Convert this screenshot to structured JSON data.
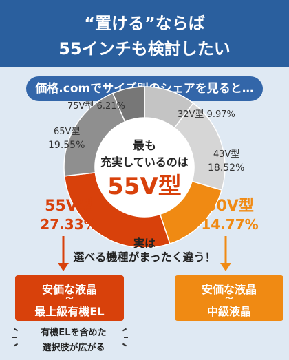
{
  "header": {
    "line1": "“置ける”ならば",
    "line2": "55インチも検討したい"
  },
  "bubble": {
    "text": "価格.comでサイズ別のシェアを見ると…"
  },
  "chart_data": {
    "type": "pie",
    "subtype": "donut",
    "categories": [
      "32V型",
      "43V型",
      "50V型",
      "55V型",
      "65V型",
      "75V型"
    ],
    "values": [
      9.97,
      18.52,
      14.77,
      27.33,
      19.55,
      6.21
    ],
    "value_labels": [
      "9.97%",
      "18.52%",
      "14.77%",
      "27.33%",
      "19.55%",
      "6.21%"
    ],
    "colors": [
      "#c4c4c4",
      "#d6d6d6",
      "#f08a13",
      "#d8410b",
      "#8f8f8f",
      "#777777"
    ],
    "center_text": {
      "line1": "最も",
      "line2": "充実しているのは",
      "highlight": "55V型"
    }
  },
  "callouts": {
    "mid_line1": "実は",
    "mid_line2": "選べる機種がまったく違う！",
    "left_box": {
      "top": "安価な液晶",
      "mid": "〜",
      "bottom": "最上級有機EL"
    },
    "right_box": {
      "top": "安価な液晶",
      "mid": "〜",
      "bottom": "中級液晶"
    },
    "left_note_line1": "有機ELを含めた",
    "left_note_line2": "選択肢が広がる"
  },
  "colors": {
    "header_bg": "#2a5f9e",
    "bubble_bg": "#3366a9",
    "page_bg": "#dfe9f3",
    "accent_red": "#d8410b",
    "accent_orange": "#f08a13"
  }
}
